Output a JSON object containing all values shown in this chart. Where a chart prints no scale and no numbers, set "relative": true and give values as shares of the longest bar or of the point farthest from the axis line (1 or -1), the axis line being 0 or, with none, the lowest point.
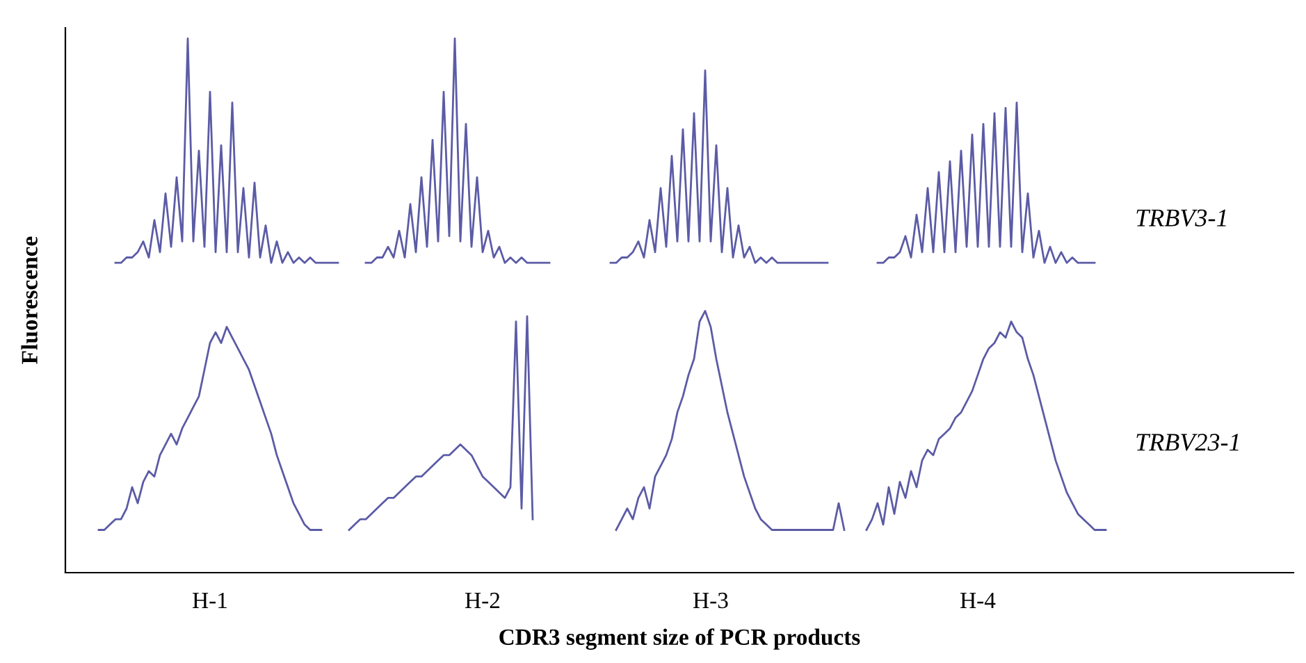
{
  "chart_data": {
    "type": "line",
    "relative": true,
    "xlabel": "CDR3 segment size of PCR products",
    "ylabel": "Fluorescence",
    "grid": false,
    "legend": false,
    "marker": "none",
    "line_style": "solid",
    "categories": [
      null,
      null,
      null,
      null,
      null,
      null,
      null,
      null,
      null,
      null,
      null,
      null,
      null,
      null,
      null,
      null,
      null,
      null,
      null,
      null,
      null,
      null,
      null,
      null,
      null,
      null,
      "H-1",
      null,
      null,
      null,
      null,
      null,
      null,
      null,
      null,
      null,
      null,
      null,
      null,
      null,
      null,
      null,
      null,
      null,
      null,
      null,
      null,
      null,
      null,
      null,
      null,
      null,
      null,
      null,
      null,
      null,
      null,
      null,
      null,
      null,
      null,
      null,
      null,
      null,
      null,
      null,
      null,
      null,
      null,
      null,
      null,
      null,
      null,
      null,
      null,
      "H-2",
      null,
      null,
      null,
      null,
      null,
      null,
      null,
      null,
      null,
      null,
      null,
      null,
      null,
      null,
      null,
      null,
      null,
      null,
      null,
      null,
      null,
      null,
      null,
      null,
      null,
      null,
      null,
      null,
      null,
      null,
      null,
      null,
      null,
      null,
      null,
      null,
      null,
      null,
      null,
      null,
      "H-3",
      null,
      null,
      null,
      null,
      null,
      null,
      null,
      null,
      null,
      null,
      null,
      null,
      null,
      null,
      null,
      null,
      null,
      null,
      null,
      null,
      null,
      null,
      null,
      null,
      null,
      null,
      null,
      null,
      null,
      null,
      null,
      null,
      null,
      null,
      null,
      null,
      null,
      null,
      null,
      null,
      null,
      null,
      null,
      null,
      null,
      null,
      null,
      "H-4",
      null,
      null,
      null,
      null,
      null,
      null,
      null,
      null,
      null,
      null,
      null,
      null,
      null,
      null,
      null,
      null,
      null,
      null,
      null,
      null,
      null,
      null,
      null,
      null,
      null,
      null,
      null,
      null,
      null,
      null,
      null,
      null,
      null,
      null,
      null,
      null,
      null,
      null,
      null,
      null,
      null,
      null,
      null,
      null,
      null,
      null,
      null,
      null,
      null,
      null,
      null,
      null,
      null,
      null,
      null,
      null
    ],
    "series": [
      {
        "name": "TRBV3-1",
        "color": "#5b5ba6",
        "values": [
          null,
          null,
          null,
          null,
          null,
          null,
          null,
          null,
          null,
          0.58,
          0.58,
          0.59,
          0.59,
          0.6,
          0.62,
          0.59,
          0.66,
          0.6,
          0.71,
          0.61,
          0.74,
          0.62,
          1.0,
          0.62,
          0.79,
          0.61,
          0.9,
          0.6,
          0.8,
          0.6,
          0.88,
          0.6,
          0.72,
          0.59,
          0.73,
          0.59,
          0.65,
          0.58,
          0.62,
          0.58,
          0.6,
          0.58,
          0.59,
          0.58,
          0.59,
          0.58,
          0.58,
          0.58,
          0.58,
          0.58,
          null,
          null,
          null,
          null,
          0.58,
          0.58,
          0.59,
          0.59,
          0.61,
          0.59,
          0.64,
          0.59,
          0.69,
          0.6,
          0.74,
          0.61,
          0.81,
          0.62,
          0.9,
          0.63,
          1.0,
          0.62,
          0.84,
          0.61,
          0.74,
          0.6,
          0.64,
          0.59,
          0.61,
          0.58,
          0.59,
          0.58,
          0.59,
          0.58,
          0.58,
          0.58,
          0.58,
          0.58,
          null,
          null,
          null,
          null,
          null,
          null,
          null,
          null,
          null,
          null,
          0.58,
          0.58,
          0.59,
          0.59,
          0.6,
          0.62,
          0.59,
          0.66,
          0.6,
          0.72,
          0.61,
          0.78,
          0.62,
          0.83,
          0.62,
          0.86,
          0.62,
          0.94,
          0.62,
          0.8,
          0.6,
          0.72,
          0.59,
          0.65,
          0.59,
          0.61,
          0.58,
          0.59,
          0.58,
          0.59,
          0.58,
          0.58,
          0.58,
          0.58,
          0.58,
          0.58,
          0.58,
          0.58,
          0.58,
          0.58,
          null,
          null,
          null,
          null,
          null,
          null,
          null,
          null,
          0.58,
          0.58,
          0.59,
          0.59,
          0.6,
          0.63,
          0.59,
          0.67,
          0.6,
          0.72,
          0.6,
          0.75,
          0.6,
          0.77,
          0.6,
          0.79,
          0.61,
          0.82,
          0.61,
          0.84,
          0.61,
          0.86,
          0.61,
          0.87,
          0.61,
          0.88,
          0.6,
          0.71,
          0.59,
          0.64,
          0.58,
          0.61,
          0.58,
          0.6,
          0.58,
          0.59,
          0.58,
          0.58,
          0.58,
          0.58,
          null,
          null,
          null,
          null,
          null,
          null,
          null,
          null,
          null,
          null,
          null,
          null,
          null,
          null,
          null,
          null,
          null,
          null,
          null,
          null,
          null,
          null,
          null,
          null,
          null,
          null,
          null,
          null,
          null,
          null,
          null,
          null,
          null,
          null,
          null
        ]
      },
      {
        "name": "TRBV23-1",
        "color": "#5b5ba6",
        "values": [
          null,
          null,
          null,
          null,
          null,
          null,
          0.08,
          0.08,
          0.09,
          0.1,
          0.1,
          0.12,
          0.16,
          0.13,
          0.17,
          0.19,
          0.18,
          0.22,
          0.24,
          0.26,
          0.24,
          0.27,
          0.29,
          0.31,
          0.33,
          0.38,
          0.43,
          0.45,
          0.43,
          0.46,
          0.44,
          0.42,
          0.4,
          0.38,
          0.35,
          0.32,
          0.29,
          0.26,
          0.22,
          0.19,
          0.16,
          0.13,
          0.11,
          0.09,
          0.08,
          0.08,
          0.08,
          null,
          null,
          null,
          null,
          0.08,
          0.09,
          0.1,
          0.1,
          0.11,
          0.12,
          0.13,
          0.14,
          0.14,
          0.15,
          0.16,
          0.17,
          0.18,
          0.18,
          0.19,
          0.2,
          0.21,
          0.22,
          0.22,
          0.23,
          0.24,
          0.23,
          0.22,
          0.2,
          0.18,
          0.17,
          0.16,
          0.15,
          0.14,
          0.16,
          0.47,
          0.12,
          0.48,
          0.1,
          null,
          null,
          null,
          null,
          null,
          null,
          null,
          null,
          null,
          null,
          null,
          null,
          null,
          null,
          0.08,
          0.1,
          0.12,
          0.1,
          0.14,
          0.16,
          0.12,
          0.18,
          0.2,
          0.22,
          0.25,
          0.3,
          0.33,
          0.37,
          0.4,
          0.47,
          0.49,
          0.46,
          0.4,
          0.35,
          0.3,
          0.26,
          0.22,
          0.18,
          0.15,
          0.12,
          0.1,
          0.09,
          0.08,
          0.08,
          0.08,
          0.08,
          0.08,
          0.08,
          0.08,
          0.08,
          0.08,
          0.08,
          0.08,
          0.08,
          0.13,
          0.08,
          null,
          null,
          null,
          0.08,
          0.1,
          0.13,
          0.09,
          0.16,
          0.11,
          0.17,
          0.14,
          0.19,
          0.16,
          0.21,
          0.23,
          0.22,
          0.25,
          0.26,
          0.27,
          0.29,
          0.3,
          0.32,
          0.34,
          0.37,
          0.4,
          0.42,
          0.43,
          0.45,
          0.44,
          0.47,
          0.45,
          0.44,
          0.4,
          0.37,
          0.33,
          0.29,
          0.25,
          0.21,
          0.18,
          0.15,
          0.13,
          0.11,
          0.1,
          0.09,
          0.08,
          0.08,
          0.08,
          null,
          null,
          null,
          null,
          null,
          null,
          null,
          null,
          null,
          null,
          null,
          null,
          null,
          null,
          null,
          null,
          null,
          null,
          null,
          null,
          null,
          null,
          null,
          null,
          null,
          null,
          null,
          null,
          null,
          null,
          null,
          null,
          null
        ]
      }
    ]
  }
}
